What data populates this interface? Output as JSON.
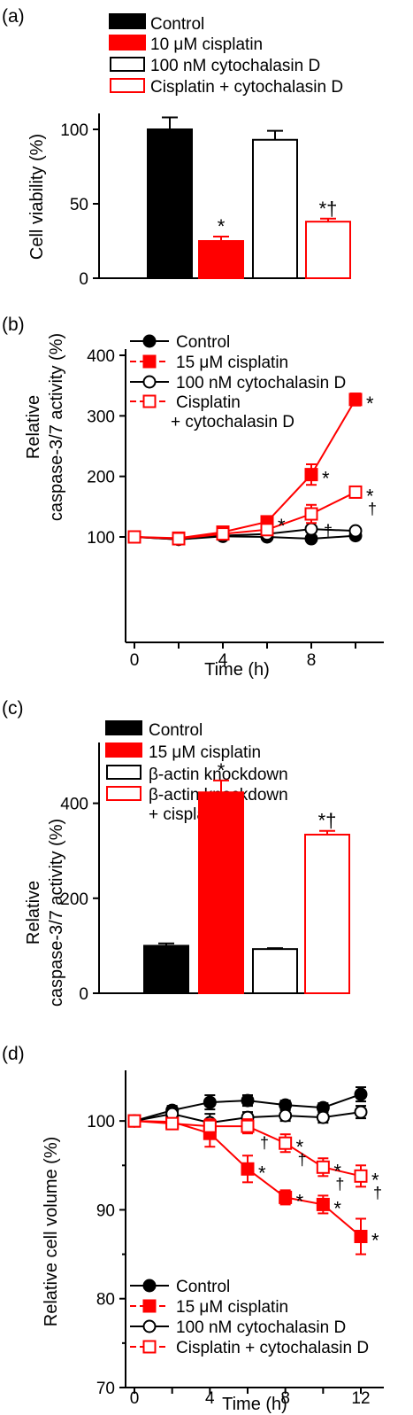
{
  "colors": {
    "black": "#000000",
    "red": "#ff0000",
    "white": "#ffffff"
  },
  "chart_data": [
    {
      "panel": "(a)",
      "type": "bar",
      "categories": [
        "Control",
        "10 μM cisplatin",
        "100 nM cytochalasin D",
        "Cisplatin + cytochalasin D"
      ],
      "values": [
        100,
        25,
        93,
        38
      ],
      "errors": [
        8,
        3,
        6,
        2
      ],
      "annotations": [
        "",
        "*",
        "",
        "*†"
      ],
      "ylabel": [
        "Cell viability (%)"
      ],
      "xlabel": "",
      "ylim": [
        0,
        100
      ],
      "yticks": [
        "0",
        "50",
        "100"
      ],
      "legend": [
        "Control",
        "10 μM cisplatin",
        "100 nM cytochalasin D",
        "Cisplatin + cytochalasin D"
      ],
      "legend_placement": "top"
    },
    {
      "panel": "(b)",
      "type": "line",
      "x": [
        0,
        2,
        4,
        6,
        8,
        10
      ],
      "series": [
        {
          "name": "Control",
          "values": [
            100,
            96,
            101,
            100,
            97,
            102
          ],
          "errors": [
            3,
            3,
            3,
            3,
            3,
            3
          ],
          "marker": "filled-circle",
          "color": "black"
        },
        {
          "name": "15 μM cisplatin",
          "values": [
            100,
            98,
            108,
            125,
            203,
            327
          ],
          "errors": [
            3,
            3,
            4,
            5,
            17,
            10
          ],
          "marker": "filled-square",
          "color": "red"
        },
        {
          "name": "100 nM cytochalasin D",
          "values": [
            100,
            96,
            102,
            105,
            113,
            110
          ],
          "errors": [
            3,
            3,
            3,
            3,
            5,
            5
          ],
          "marker": "open-circle",
          "color": "black"
        },
        {
          "name": "Cisplatin + cytochalasin D",
          "values": [
            100,
            97,
            105,
            112,
            138,
            174
          ],
          "errors": [
            3,
            3,
            3,
            4,
            15,
            5
          ],
          "marker": "open-square",
          "color": "red"
        }
      ],
      "point_annotations": [
        {
          "x": 6,
          "y": 125,
          "text": "*"
        },
        {
          "x": 8,
          "y": 203,
          "text": "*"
        },
        {
          "x": 10,
          "y": 327,
          "text": "*"
        },
        {
          "x": 8,
          "y": 138,
          "text": "†"
        },
        {
          "x": 10,
          "y": 174,
          "text": "*"
        },
        {
          "x": 10,
          "y": 174,
          "text": "†"
        }
      ],
      "xlabel": "Time (h)",
      "ylabel": [
        "Relative",
        "caspase-3/7 activity (%)"
      ],
      "xlim": [
        0,
        10.8
      ],
      "ylim": [
        80,
        400
      ],
      "xticks": [
        "0",
        "4",
        "8"
      ],
      "yticks": [
        "100",
        "200",
        "300",
        "400"
      ],
      "legend": [
        "Control",
        "15 μM cisplatin",
        "100 nM cytochalasin D",
        "Cisplatin",
        "+ cytochalasin D"
      ],
      "legend_placement": "top-left"
    },
    {
      "panel": "(c)",
      "type": "bar",
      "categories": [
        "Control",
        "15 μM cisplatin",
        "β-actin knockdown",
        "β-actin knockdown + cisplatin"
      ],
      "values": [
        100,
        423,
        93,
        334
      ],
      "errors": [
        5,
        25,
        2,
        8
      ],
      "annotations": [
        "",
        "*",
        "",
        "*†"
      ],
      "ylabel": [
        "Relative",
        "caspase-3/7 activity (%)"
      ],
      "xlabel": "",
      "ylim": [
        0,
        500
      ],
      "yticks": [
        "0",
        "200",
        "400"
      ],
      "legend": [
        "Control",
        "15 μM cisplatin",
        "β-actin knockdown",
        "β-actin knockdown",
        "+ cisplatin"
      ],
      "legend_placement": "top"
    },
    {
      "panel": "(d)",
      "type": "line",
      "x": [
        0,
        2,
        4,
        6,
        8,
        10,
        12
      ],
      "series": [
        {
          "name": "Control",
          "values": [
            100,
            101.2,
            102.1,
            102.3,
            101.8,
            101.5,
            103
          ],
          "errors": [
            0.4,
            0.5,
            0.8,
            0.6,
            0.5,
            0.5,
            0.8
          ],
          "marker": "filled-circle",
          "color": "black"
        },
        {
          "name": "15 μM cisplatin",
          "values": [
            100,
            99.9,
            98.6,
            94.6,
            91.4,
            90.6,
            87
          ],
          "errors": [
            0.4,
            0.6,
            1.5,
            1.5,
            0.8,
            1,
            2
          ],
          "marker": "filled-square",
          "color": "red"
        },
        {
          "name": "100 nM cytochalasin D",
          "values": [
            100,
            100.8,
            99.8,
            100.4,
            100.6,
            100.4,
            101
          ],
          "errors": [
            0.4,
            0.5,
            1,
            0.6,
            0.6,
            0.6,
            0.7
          ],
          "marker": "open-circle",
          "color": "black"
        },
        {
          "name": "Cisplatin + cytochalasin D",
          "values": [
            100,
            99.7,
            99.4,
            99.4,
            97.5,
            94.8,
            93.8
          ],
          "errors": [
            0.4,
            0.5,
            0.8,
            0.8,
            1,
            1,
            1.2
          ],
          "marker": "open-square",
          "color": "red"
        }
      ],
      "point_annotations": [
        {
          "x": 6,
          "y": 94.6,
          "text": "*"
        },
        {
          "x": 6,
          "y": 99.4,
          "text": "†"
        },
        {
          "x": 8,
          "y": 97.5,
          "text": "*"
        },
        {
          "x": 8,
          "y": 97.5,
          "text": "†"
        },
        {
          "x": 8,
          "y": 91.4,
          "text": "*"
        },
        {
          "x": 10,
          "y": 94.8,
          "text": "*"
        },
        {
          "x": 10,
          "y": 94.8,
          "text": "†"
        },
        {
          "x": 10,
          "y": 90.6,
          "text": "*"
        },
        {
          "x": 12,
          "y": 93.8,
          "text": "*"
        },
        {
          "x": 12,
          "y": 93.8,
          "text": "†"
        },
        {
          "x": 12,
          "y": 87,
          "text": "*"
        }
      ],
      "xlabel": "Time (h)",
      "ylabel": [
        "Relative cell volume (%)"
      ],
      "xlim": [
        0,
        13
      ],
      "ylim": [
        70,
        105
      ],
      "xticks": [
        "0",
        "4",
        "8",
        "12"
      ],
      "yticks": [
        "70",
        "80",
        "90",
        "100"
      ],
      "legend": [
        "Control",
        "15 μM cisplatin",
        "100 nM cytochalasin D",
        "Cisplatin + cytochalasin D"
      ],
      "legend_placement": "bottom-left"
    }
  ]
}
